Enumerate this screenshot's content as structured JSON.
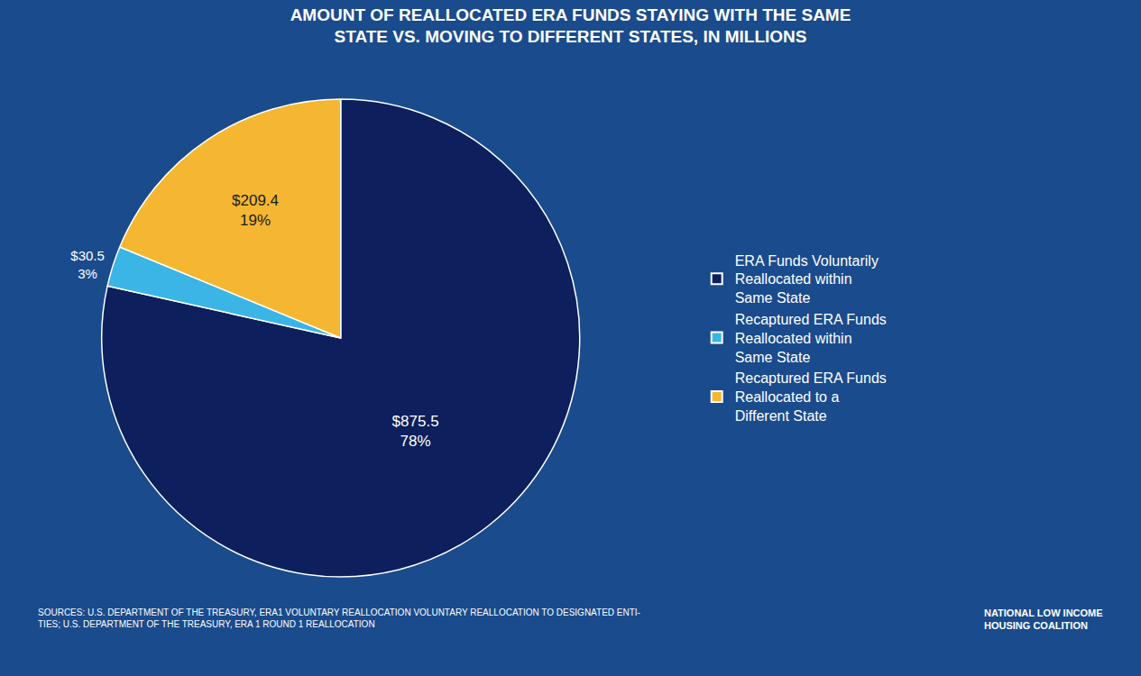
{
  "chart_data": {
    "type": "pie",
    "title": "AMOUNT OF REALLOCATED ERA FUNDS STAYING WITH THE SAME\nSTATE VS. MOVING TO DIFFERENT STATES, IN MILLIONS",
    "categories": [
      "ERA Funds Voluntarily\nReallocated within\nSame State",
      "Recaptured ERA Funds\nReallocated within\nSame State",
      "Recaptured ERA Funds\nReallocated to a\nDifferent State"
    ],
    "values": [
      875.5,
      30.5,
      209.4
    ],
    "value_labels": [
      "$875.5\n78%",
      "$30.5\n3%",
      "$209.4\n19%"
    ],
    "colors": [
      "#0d1f5c",
      "#3ab5e5",
      "#f5b731"
    ],
    "data_labels": true,
    "legend": "right",
    "annotations": [
      "SOURCES: U.S. DEPARTMENT OF THE TREASURY, ERA1 VOLUNTARY REALLOCATION VOLUNTARY REALLOCATION TO DESIGNATED ENTI-\nTIES; U.S. DEPARTMENT OF THE TREASURY, ERA 1 ROUND 1 REALLOCATION",
      "NATIONAL LOW INCOME\nHOUSING COALITION"
    ]
  }
}
